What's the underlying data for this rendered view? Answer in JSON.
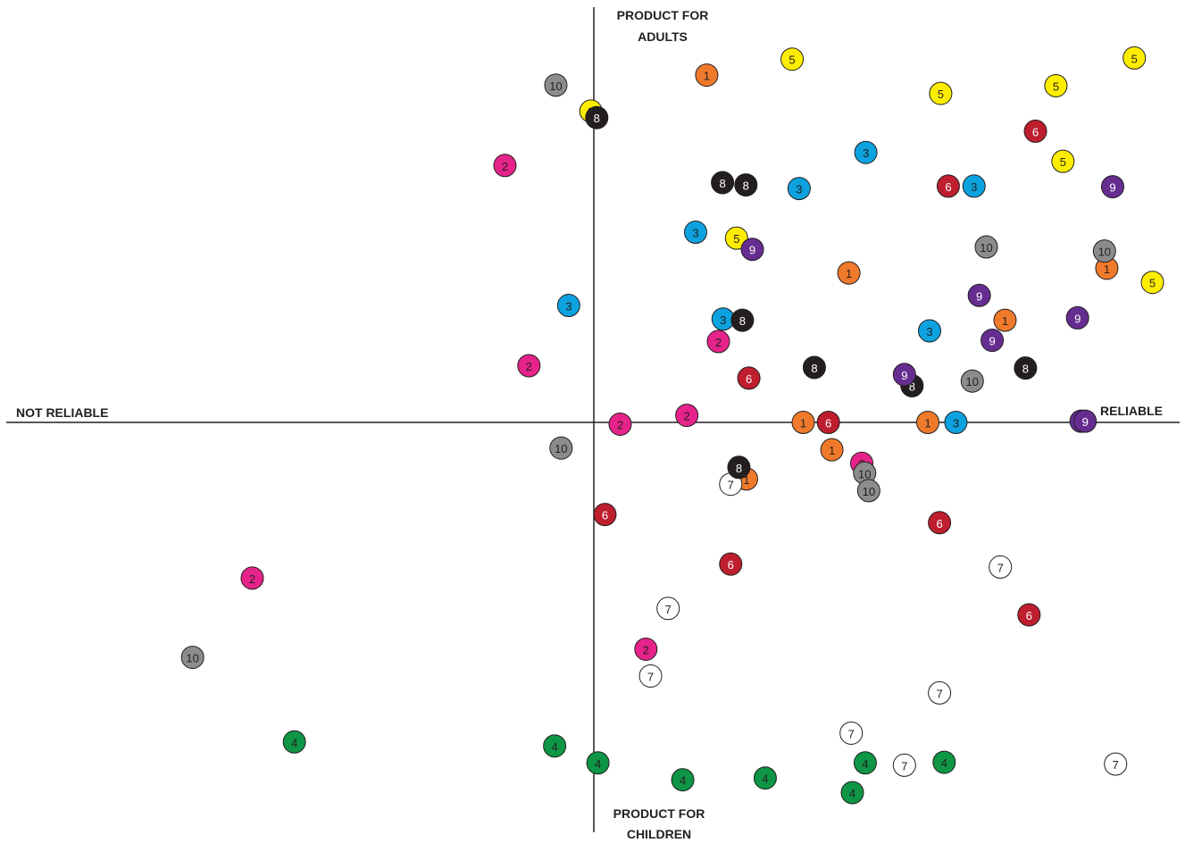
{
  "chart_data": {
    "type": "scatter",
    "axis_labels": {
      "x_negative": "NOT RELIABLE",
      "x_positive": "RELIABLE",
      "y_positive": [
        "PRODUCT FOR",
        "ADULTS"
      ],
      "y_negative": [
        "PRODUCT FOR",
        "CHILDREN"
      ]
    },
    "xlim": [
      -100,
      100
    ],
    "ylim": [
      -70,
      70
    ],
    "grid": false,
    "legend": "none",
    "series": [
      {
        "label": "1",
        "color": "#f07a2b",
        "text_color": "#231f20",
        "points": [
          [
            19.3,
            58.8
          ],
          [
            43.6,
            25.3
          ],
          [
            35.8,
            0
          ],
          [
            40.7,
            -4.7
          ],
          [
            70.3,
            17.3
          ],
          [
            87.7,
            26.1
          ],
          [
            57.1,
            0
          ],
          [
            26.1,
            -9.7
          ]
        ]
      },
      {
        "label": "2",
        "color": "#e6238a",
        "text_color": "#231f20",
        "points": [
          [
            -15.2,
            43.5
          ],
          [
            -11.1,
            9.6
          ],
          [
            15.9,
            1.2
          ],
          [
            21.3,
            13.7
          ],
          [
            4.5,
            -0.3
          ],
          [
            45.8,
            -7.0
          ],
          [
            -58.4,
            -26.7
          ],
          [
            8.9,
            -38.9
          ]
        ]
      },
      {
        "label": "3",
        "color": "#0ca2e0",
        "text_color": "#231f20",
        "points": [
          [
            46.5,
            45.7
          ],
          [
            35.1,
            39.6
          ],
          [
            65.0,
            40.0
          ],
          [
            17.4,
            32.2
          ],
          [
            -4.3,
            19.8
          ],
          [
            22.1,
            17.5
          ],
          [
            57.4,
            15.5
          ],
          [
            61.9,
            0
          ]
        ]
      },
      {
        "label": "4",
        "color": "#0e9545",
        "text_color": "#231f20",
        "points": [
          [
            -51.2,
            -54.8
          ],
          [
            -6.7,
            -55.5
          ],
          [
            0.7,
            -58.4
          ],
          [
            15.2,
            -61.3
          ],
          [
            29.3,
            -61.0
          ],
          [
            46.4,
            -58.4
          ],
          [
            44.2,
            -63.5
          ],
          [
            59.9,
            -58.3
          ]
        ]
      },
      {
        "label": "5",
        "color": "#ffed00",
        "text_color": "#231f20",
        "points": [
          [
            33.9,
            61.5
          ],
          [
            59.3,
            55.7
          ],
          [
            79.0,
            57.0
          ],
          [
            92.4,
            61.7
          ],
          [
            80.2,
            44.2
          ],
          [
            24.4,
            31.2
          ],
          [
            95.5,
            23.7
          ],
          [
            -0.5,
            52.7
          ]
        ]
      },
      {
        "label": "6",
        "color": "#be1e2d",
        "text_color": "#ffffff",
        "points": [
          [
            75.5,
            49.3
          ],
          [
            60.6,
            40.0
          ],
          [
            26.5,
            7.5
          ],
          [
            40.1,
            0
          ],
          [
            1.9,
            -15.8
          ],
          [
            23.4,
            -24.3
          ],
          [
            59.1,
            -17.2
          ],
          [
            74.4,
            -33.0
          ]
        ]
      },
      {
        "label": "7",
        "color": "#ffffff",
        "text_color": "#231f20",
        "points": [
          [
            23.4,
            -10.6
          ],
          [
            69.5,
            -24.8
          ],
          [
            12.7,
            -31.9
          ],
          [
            9.7,
            -43.5
          ],
          [
            59.1,
            -46.4
          ],
          [
            44.0,
            -53.3
          ],
          [
            53.1,
            -58.8
          ],
          [
            89.2,
            -58.6
          ]
        ]
      },
      {
        "label": "8",
        "color": "#231f20",
        "text_color": "#ffffff",
        "points": [
          [
            0.5,
            51.6
          ],
          [
            22.0,
            40.6
          ],
          [
            26.0,
            40.2
          ],
          [
            25.4,
            17.3
          ],
          [
            37.7,
            9.3
          ],
          [
            54.4,
            6.2
          ],
          [
            73.8,
            9.2
          ],
          [
            24.8,
            -7.7
          ]
        ]
      },
      {
        "label": "9",
        "color": "#662d91",
        "text_color": "#ffffff",
        "points": [
          [
            88.7,
            39.9
          ],
          [
            27.1,
            29.3
          ],
          [
            65.9,
            21.5
          ],
          [
            82.7,
            17.7
          ],
          [
            68.1,
            13.9
          ],
          [
            53.1,
            8.1
          ],
          [
            83.3,
            0.2
          ],
          [
            84.0,
            0.2
          ]
        ]
      },
      {
        "label": "10",
        "color": "#8c8c8c",
        "text_color": "#231f20",
        "points": [
          [
            -6.5,
            57.1
          ],
          [
            67.1,
            29.7
          ],
          [
            87.3,
            29.0
          ],
          [
            64.7,
            7.0
          ],
          [
            -5.6,
            -4.4
          ],
          [
            46.3,
            -8.7
          ],
          [
            47.0,
            -11.7
          ],
          [
            -68.6,
            -40.3
          ]
        ]
      }
    ]
  }
}
